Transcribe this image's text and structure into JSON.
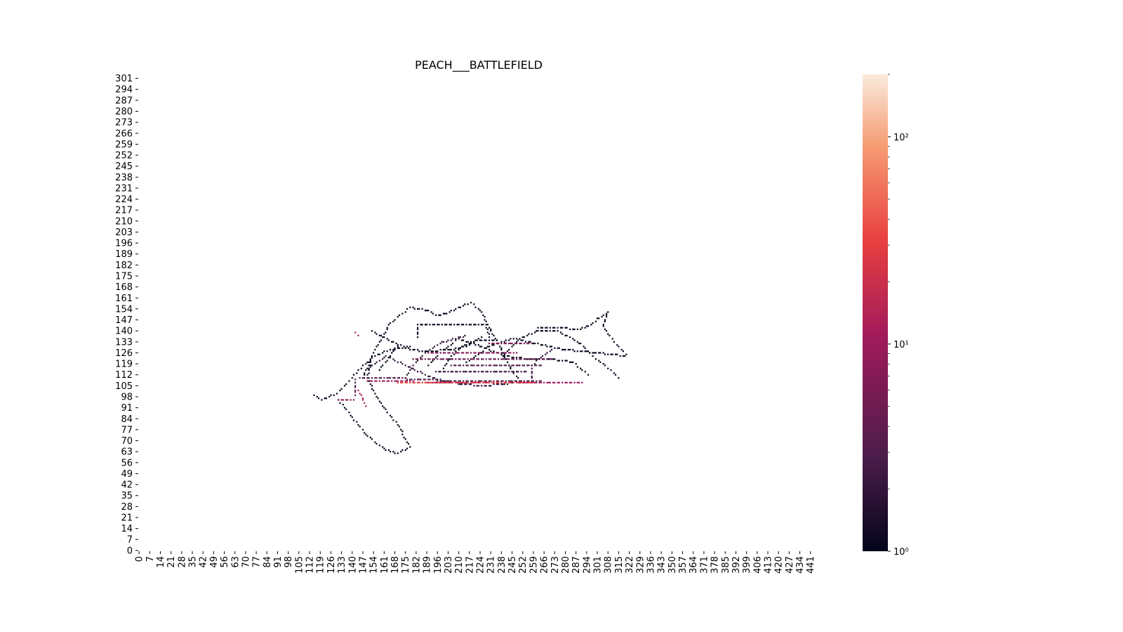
{
  "chart_data": {
    "type": "heatmap",
    "title": "PEACH___BATTLEFIELD",
    "xlabel": "",
    "ylabel": "",
    "x_range": [
      0,
      443
    ],
    "y_range": [
      0,
      304
    ],
    "x_tick_labels": [
      "0",
      "7",
      "14",
      "21",
      "28",
      "35",
      "42",
      "49",
      "56",
      "63",
      "70",
      "77",
      "84",
      "91",
      "98",
      "105",
      "112",
      "119",
      "126",
      "133",
      "140",
      "147",
      "154",
      "161",
      "168",
      "175",
      "182",
      "189",
      "196",
      "203",
      "210",
      "217",
      "224",
      "231",
      "238",
      "245",
      "252",
      "259",
      "266",
      "273",
      "280",
      "287",
      "294",
      "301",
      "308",
      "315",
      "322",
      "329",
      "336",
      "343",
      "350",
      "357",
      "364",
      "371",
      "378",
      "385",
      "392",
      "399",
      "406",
      "413",
      "420",
      "427",
      "434",
      "441"
    ],
    "y_tick_labels": [
      "0",
      "7",
      "14",
      "21",
      "28",
      "35",
      "42",
      "49",
      "56",
      "63",
      "70",
      "77",
      "84",
      "91",
      "98",
      "105",
      "112",
      "119",
      "126",
      "133",
      "140",
      "147",
      "154",
      "161",
      "168",
      "175",
      "182",
      "189",
      "196",
      "203",
      "210",
      "217",
      "224",
      "231",
      "238",
      "245",
      "252",
      "259",
      "266",
      "273",
      "280",
      "287",
      "294",
      "301"
    ],
    "colorbar": {
      "scale": "log",
      "min": 1,
      "max": 200,
      "tick_labels": [
        "10⁰",
        "10¹",
        "10²"
      ],
      "tick_values": [
        1,
        10,
        100
      ]
    },
    "colormap": [
      "#03051a",
      "#4c1d4b",
      "#a11a5b",
      "#e83f3f",
      "#f69c73",
      "#faebdd"
    ],
    "trajectories": [
      {
        "count": 1,
        "points": [
          [
            147,
            110
          ],
          [
            155,
            128
          ],
          [
            165,
            145
          ],
          [
            178,
            155
          ],
          [
            190,
            153
          ],
          [
            195,
            150
          ],
          [
            202,
            151
          ],
          [
            208,
            154
          ],
          [
            218,
            158
          ],
          [
            225,
            152
          ],
          [
            231,
            140
          ],
          [
            238,
            128
          ],
          [
            244,
            116
          ],
          [
            250,
            108
          ]
        ]
      },
      {
        "count": 1,
        "points": [
          [
            153,
            140
          ],
          [
            164,
            134
          ],
          [
            178,
            128
          ],
          [
            190,
            127
          ],
          [
            205,
            128
          ],
          [
            215,
            130
          ],
          [
            225,
            136
          ]
        ]
      },
      {
        "count": 1,
        "points": [
          [
            183,
            136
          ],
          [
            183,
            144
          ],
          [
            228,
            144
          ],
          [
            230,
            136
          ]
        ]
      },
      {
        "count": 1,
        "points": [
          [
            115,
            99
          ],
          [
            120,
            96
          ],
          [
            130,
            100
          ],
          [
            140,
            110
          ],
          [
            147,
            118
          ],
          [
            155,
            124
          ],
          [
            165,
            128
          ],
          [
            178,
            130
          ]
        ]
      },
      {
        "count": 1,
        "points": [
          [
            131,
            96
          ],
          [
            140,
            85
          ],
          [
            150,
            73
          ],
          [
            162,
            64
          ],
          [
            170,
            62
          ],
          [
            178,
            66
          ],
          [
            170,
            80
          ],
          [
            160,
            92
          ],
          [
            155,
            100
          ],
          [
            150,
            110
          ],
          [
            152,
            120
          ]
        ]
      },
      {
        "count": 1,
        "points": [
          [
            262,
            142
          ],
          [
            275,
            142
          ],
          [
            288,
            141
          ],
          [
            295,
            143
          ],
          [
            302,
            148
          ],
          [
            308,
            152
          ],
          [
            305,
            143
          ],
          [
            312,
            133
          ],
          [
            320,
            125
          ]
        ]
      },
      {
        "count": 1,
        "points": [
          [
            240,
            125
          ],
          [
            250,
            135
          ],
          [
            262,
            140
          ],
          [
            275,
            140
          ],
          [
            290,
            132
          ],
          [
            300,
            122
          ],
          [
            310,
            115
          ],
          [
            315,
            110
          ]
        ]
      },
      {
        "count": 1,
        "points": [
          [
            215,
            120
          ],
          [
            230,
            130
          ],
          [
            246,
            135
          ],
          [
            265,
            131
          ],
          [
            280,
            128
          ],
          [
            300,
            126
          ],
          [
            320,
            124
          ]
        ]
      },
      {
        "count": 1,
        "points": [
          [
            190,
            118
          ],
          [
            200,
            128
          ],
          [
            210,
            135
          ],
          [
            225,
            130
          ],
          [
            240,
            124
          ],
          [
            255,
            122
          ],
          [
            270,
            122
          ],
          [
            285,
            120
          ],
          [
            295,
            112
          ]
        ]
      },
      {
        "count": 2,
        "points": [
          [
            150,
            116
          ],
          [
            162,
            124
          ],
          [
            175,
            118
          ],
          [
            188,
            112
          ],
          [
            200,
            108
          ],
          [
            212,
            106
          ],
          [
            225,
            105
          ],
          [
            240,
            106
          ],
          [
            252,
            108
          ]
        ]
      },
      {
        "count": 3,
        "points": [
          [
            145,
            110
          ],
          [
            165,
            110
          ],
          [
            185,
            109
          ],
          [
            205,
            108
          ],
          [
            225,
            108
          ],
          [
            245,
            108
          ],
          [
            265,
            108
          ]
        ]
      },
      {
        "count": 8,
        "points": [
          [
            150,
            108
          ],
          [
            170,
            108
          ],
          [
            190,
            107
          ],
          [
            210,
            107
          ],
          [
            230,
            107
          ],
          [
            250,
            107
          ],
          [
            270,
            107
          ],
          [
            292,
            107
          ]
        ]
      },
      {
        "count": 25,
        "points": [
          [
            170,
            107
          ],
          [
            200,
            107
          ],
          [
            230,
            107
          ],
          [
            260,
            107
          ]
        ]
      },
      {
        "count": 4,
        "points": [
          [
            180,
            122
          ],
          [
            200,
            122
          ],
          [
            220,
            122
          ],
          [
            240,
            122
          ],
          [
            260,
            122
          ],
          [
            272,
            122
          ]
        ]
      },
      {
        "count": 6,
        "points": [
          [
            190,
            126
          ],
          [
            210,
            126
          ],
          [
            230,
            126
          ],
          [
            248,
            126
          ]
        ]
      },
      {
        "count": 3,
        "points": [
          [
            205,
            118
          ],
          [
            220,
            118
          ],
          [
            235,
            118
          ],
          [
            250,
            118
          ],
          [
            265,
            118
          ]
        ]
      },
      {
        "count": 5,
        "points": [
          [
            230,
            132
          ],
          [
            245,
            132
          ],
          [
            258,
            132
          ]
        ]
      },
      {
        "count": 2,
        "points": [
          [
            195,
            114
          ],
          [
            215,
            114
          ],
          [
            235,
            114
          ],
          [
            255,
            114
          ]
        ]
      },
      {
        "count": 12,
        "points": [
          [
            142,
            139
          ],
          [
            145,
            136
          ]
        ]
      },
      {
        "count": 10,
        "points": [
          [
            144,
            102
          ],
          [
            150,
            91
          ]
        ]
      },
      {
        "count": 6,
        "points": [
          [
            131,
            96
          ],
          [
            141,
            96
          ]
        ]
      },
      {
        "count": 3,
        "points": [
          [
            142,
            99
          ],
          [
            142,
            110
          ]
        ]
      },
      {
        "count": 2,
        "points": [
          [
            175,
            110
          ],
          [
            180,
            118
          ],
          [
            188,
            126
          ],
          [
            200,
            133
          ],
          [
            215,
            137
          ]
        ]
      },
      {
        "count": 1,
        "points": [
          [
            200,
            116
          ],
          [
            205,
            124
          ],
          [
            212,
            130
          ],
          [
            222,
            134
          ],
          [
            235,
            134
          ]
        ]
      },
      {
        "count": 1,
        "points": [
          [
            158,
            115
          ],
          [
            165,
            124
          ],
          [
            170,
            131
          ]
        ]
      },
      {
        "count": 2,
        "points": [
          [
            258,
            108
          ],
          [
            258,
            118
          ],
          [
            265,
            124
          ],
          [
            272,
            128
          ]
        ]
      }
    ]
  }
}
